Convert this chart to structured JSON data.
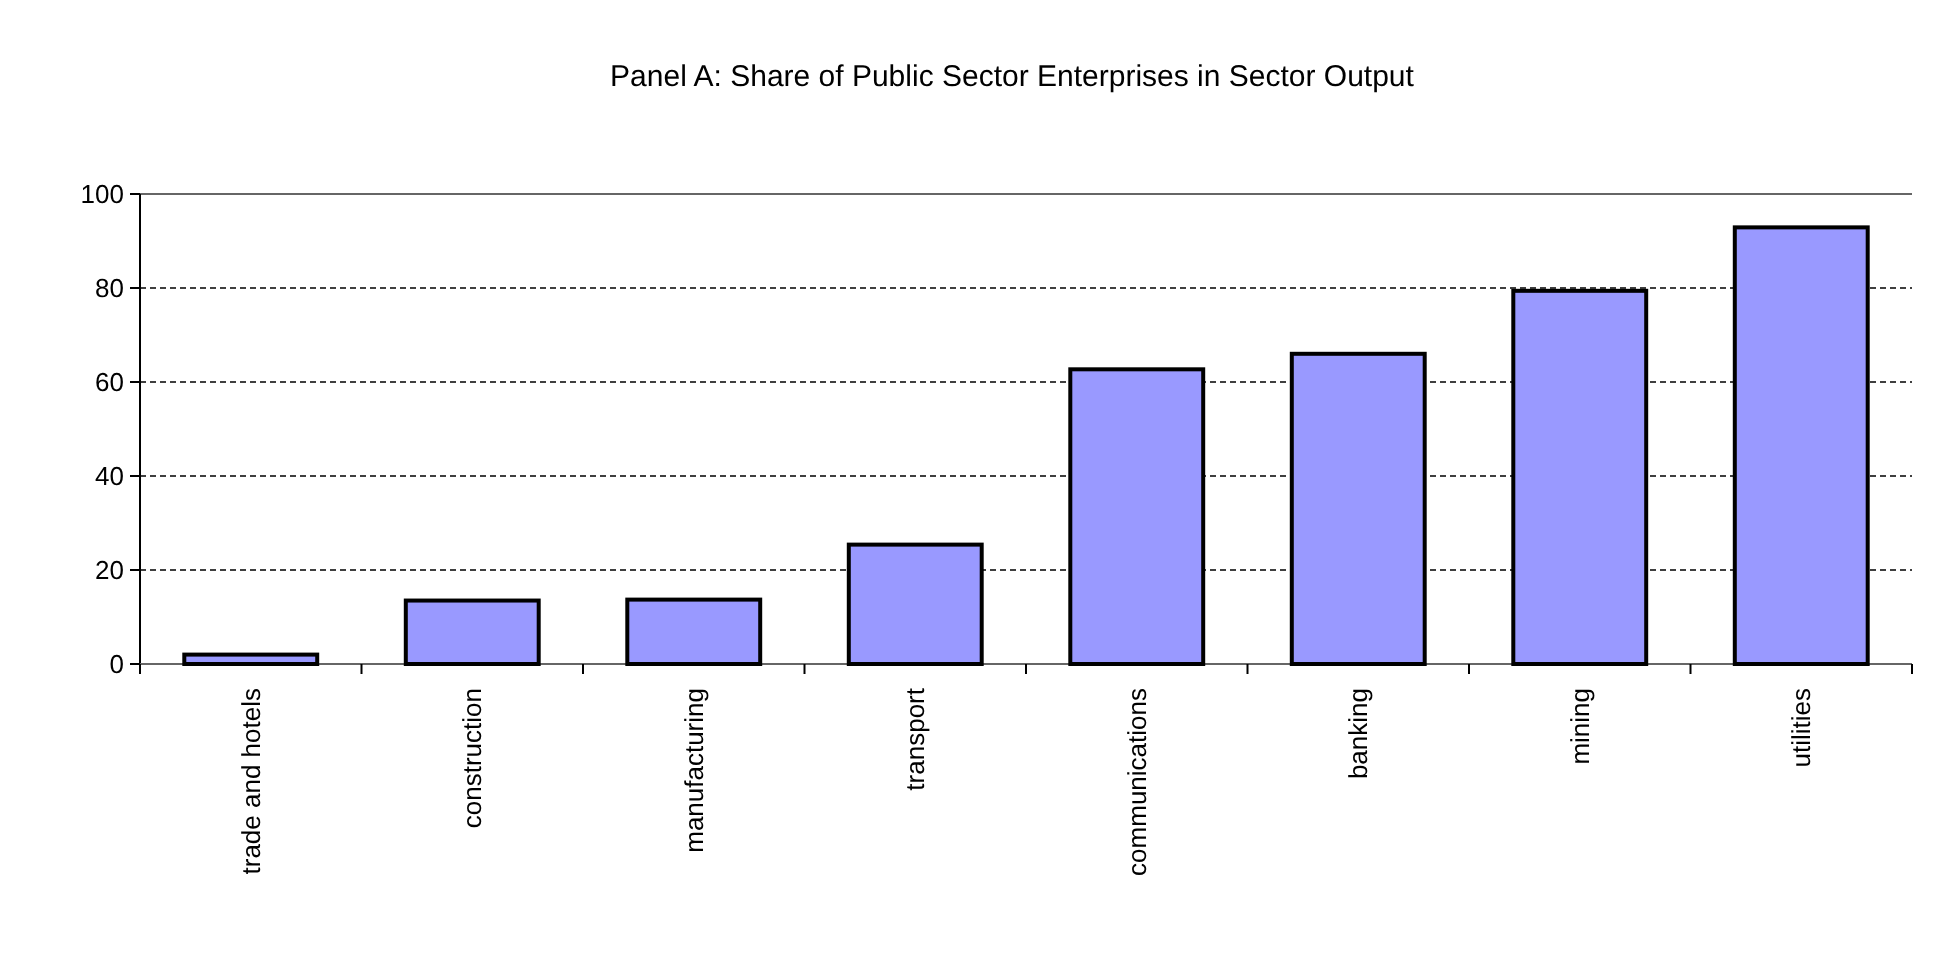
{
  "chart_data": {
    "type": "bar",
    "title": "Panel A: Share of Public Sector Enterprises in Sector Output",
    "categories": [
      "trade and hotels",
      "construction",
      "manufacturing",
      "transport",
      "communications",
      "banking",
      "mining",
      "utilities"
    ],
    "values": [
      2,
      13.5,
      13.7,
      25.4,
      62.7,
      66,
      79.4,
      92.9
    ],
    "color": "#9999ff",
    "ylim": [
      0,
      100
    ],
    "yticks": [
      0,
      20,
      40,
      60,
      80,
      100
    ],
    "grid": "y"
  }
}
